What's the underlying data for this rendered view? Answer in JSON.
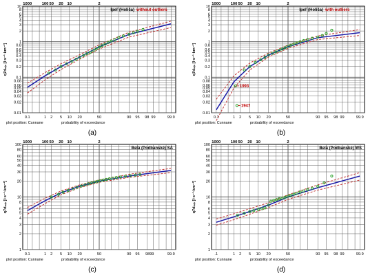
{
  "chart_data": [
    {
      "type": "line",
      "panel_label": "(a)",
      "title": "Ipeľ (Holiša)",
      "subtitle": "without outliers",
      "ylabel": "q7dₘᵢₙ [l·s⁻¹·km⁻²]",
      "xlabel": "probability of exceedance",
      "plot_position_note": "plot position: Cunnane",
      "yscale": "log",
      "ylim": [
        0.01,
        10
      ],
      "xlim": [
        0.05,
        99.95
      ],
      "y_tick_labels": [
        "0.01",
        "0.02",
        "0.03",
        "0.04",
        "0.05",
        "0.06",
        "0.08",
        "0.1",
        "0.2",
        "0.3",
        "0.4",
        "0.5",
        "0.6",
        "0.8",
        "1",
        "2",
        "3",
        "4",
        "5",
        "6",
        "8",
        "10"
      ],
      "x_ticks_bottom": [
        "0.1",
        "1",
        "2",
        "5",
        "10",
        "20",
        "50",
        "90",
        "95",
        "98",
        "99",
        "99.9"
      ],
      "x_ticks_top": [
        "1000",
        "100",
        "50",
        "20",
        "10",
        "2"
      ],
      "series": [
        {
          "name": "fit",
          "role": "fit",
          "color": "#1a1aa8",
          "x": [
            0.1,
            1,
            5,
            20,
            50,
            90,
            99.9
          ],
          "y": [
            0.052,
            0.11,
            0.2,
            0.37,
            0.72,
            1.6,
            3.2
          ]
        },
        {
          "name": "upper",
          "role": "upper",
          "color": "#c03030",
          "x": [
            0.1,
            1,
            5,
            20,
            50,
            90,
            99.9
          ],
          "y": [
            0.068,
            0.135,
            0.24,
            0.43,
            0.82,
            1.85,
            3.8
          ]
        },
        {
          "name": "lower",
          "role": "lower",
          "color": "#c03030",
          "x": [
            0.1,
            1,
            5,
            20,
            50,
            90,
            99.9
          ],
          "y": [
            0.036,
            0.085,
            0.165,
            0.32,
            0.62,
            1.35,
            2.5
          ]
        },
        {
          "name": "observed",
          "role": "points",
          "color": "#27a027",
          "x": [
            1.5,
            3,
            5,
            8,
            12,
            16,
            20,
            25,
            30,
            35,
            40,
            45,
            50,
            55,
            60,
            65,
            70,
            75,
            80,
            85,
            90,
            93,
            95,
            97
          ],
          "y": [
            0.13,
            0.16,
            0.2,
            0.24,
            0.28,
            0.32,
            0.36,
            0.41,
            0.46,
            0.5,
            0.56,
            0.62,
            0.7,
            0.78,
            0.85,
            0.95,
            1.05,
            1.15,
            1.3,
            1.45,
            1.62,
            1.8,
            1.95,
            2.2
          ]
        }
      ]
    },
    {
      "type": "line",
      "panel_label": "(b)",
      "title": "Ipeľ (Holiša)",
      "subtitle": "with outliers",
      "ylabel": "q7dₘᵢₙ [l·s⁻¹·km⁻²]",
      "xlabel": "probability of exceedance",
      "plot_position_note": "plot position: Cunnane",
      "yscale": "log",
      "ylim": [
        0.01,
        10
      ],
      "xlim": [
        0.05,
        99.95
      ],
      "y_tick_labels": [
        "0.01",
        "0.02",
        "0.03",
        "0.04",
        "0.05",
        "0.06",
        "0.08",
        "0.1",
        "0.2",
        "0.3",
        "0.4",
        "0.5",
        "0.6",
        "0.8",
        "1",
        "2",
        "3",
        "4",
        "5",
        "6",
        "8",
        "10"
      ],
      "x_ticks_bottom": [
        "0.1",
        "1",
        "2",
        "5",
        "10",
        "20",
        "50",
        "90",
        "95",
        "98",
        "99",
        "99.9"
      ],
      "x_ticks_top": [
        "1000",
        "100",
        "50",
        "20",
        "10",
        "2"
      ],
      "annotations": [
        {
          "text": "1993",
          "x": 1.2,
          "y": 0.057
        },
        {
          "text": "1947",
          "x": 1.4,
          "y": 0.016
        }
      ],
      "series": [
        {
          "name": "fit",
          "role": "fit",
          "color": "#1a1aa8",
          "x": [
            0.1,
            1,
            5,
            20,
            50,
            90,
            99.9
          ],
          "y": [
            0.012,
            0.075,
            0.2,
            0.42,
            0.72,
            1.3,
            1.8
          ]
        },
        {
          "name": "upper",
          "role": "upper",
          "color": "#c03030",
          "x": [
            0.1,
            1,
            5,
            20,
            50,
            90,
            99.9
          ],
          "y": [
            0.024,
            0.11,
            0.25,
            0.48,
            0.8,
            1.45,
            2.2
          ]
        },
        {
          "name": "lower",
          "role": "lower",
          "color": "#c03030",
          "x": [
            0.1,
            1,
            5,
            20,
            50,
            90,
            99.9
          ],
          "y": [
            0.006,
            0.05,
            0.16,
            0.37,
            0.65,
            1.15,
            1.5
          ]
        },
        {
          "name": "observed",
          "role": "points",
          "color": "#27a027",
          "x": [
            1.2,
            1.4,
            3,
            5,
            8,
            12,
            16,
            20,
            25,
            30,
            35,
            40,
            45,
            50,
            55,
            60,
            65,
            70,
            75,
            80,
            85,
            90,
            93,
            95,
            97
          ],
          "y": [
            0.057,
            0.016,
            0.16,
            0.2,
            0.26,
            0.31,
            0.36,
            0.42,
            0.47,
            0.52,
            0.57,
            0.62,
            0.68,
            0.74,
            0.8,
            0.87,
            0.93,
            1.0,
            1.08,
            1.15,
            1.25,
            1.35,
            1.5,
            1.7,
            2.1
          ]
        }
      ]
    },
    {
      "type": "line",
      "panel_label": "(c)",
      "title": "Belá (Podbanské) SA",
      "subtitle": "",
      "ylabel": "q7dₘᵢₙ [l·s⁻¹·km⁻²]",
      "xlabel": "probability of exceedance",
      "plot_position_note": "plot position: Cunnane",
      "yscale": "log",
      "ylim": [
        1,
        100
      ],
      "xlim": [
        0.05,
        99.95
      ],
      "y_tick_labels": [
        "1",
        "2",
        "3",
        "4",
        "5",
        "6",
        "8",
        "10",
        "20",
        "30",
        "40",
        "50",
        "60",
        "80",
        "100"
      ],
      "x_ticks_bottom": [
        "0.1",
        "1",
        "2",
        "5",
        "10",
        "20",
        "50",
        "90",
        "95",
        "9899",
        "99.9"
      ],
      "x_ticks_top": [
        "1000",
        "100",
        "50",
        "20",
        "10",
        "2"
      ],
      "series": [
        {
          "name": "fit",
          "role": "fit",
          "color": "#1a1aa8",
          "x": [
            0.1,
            1,
            5,
            20,
            50,
            90,
            99.9
          ],
          "y": [
            5.5,
            8.5,
            12,
            16,
            20,
            25,
            32
          ]
        },
        {
          "name": "upper",
          "role": "upper",
          "color": "#c03030",
          "x": [
            0.1,
            1,
            5,
            20,
            50,
            90,
            99.9
          ],
          "y": [
            6.3,
            9.5,
            13,
            17,
            21,
            27,
            35
          ]
        },
        {
          "name": "lower",
          "role": "lower",
          "color": "#c03030",
          "x": [
            0.1,
            1,
            5,
            20,
            50,
            90,
            99.9
          ],
          "y": [
            4.7,
            7.5,
            11,
            15,
            19,
            23.5,
            29
          ]
        },
        {
          "name": "observed",
          "role": "points",
          "color": "#27a027",
          "x": [
            2,
            4,
            6,
            9,
            13,
            17,
            22,
            27,
            32,
            37,
            42,
            47,
            52,
            57,
            62,
            67,
            72,
            77,
            82,
            87,
            91,
            94,
            96
          ],
          "y": [
            10,
            11.2,
            12.3,
            13.3,
            14.3,
            15.3,
            16.2,
            17,
            17.8,
            18.5,
            19.2,
            19.8,
            20.4,
            21,
            21.6,
            22.2,
            22.8,
            23.4,
            24,
            24.7,
            25.4,
            26,
            26.8
          ]
        }
      ]
    },
    {
      "type": "line",
      "panel_label": "(d)",
      "title": "Belá (Podbanské) WS",
      "subtitle": "",
      "ylabel": "q7dₘᵢₙ [l·s⁻¹·km⁻²]",
      "xlabel": "probability of exceedance",
      "plot_position_note": "plot position: Cunnane",
      "yscale": "log",
      "ylim": [
        1,
        100
      ],
      "xlim": [
        0.05,
        99.95
      ],
      "y_tick_labels": [
        "1",
        "2",
        "3",
        "4",
        "5",
        "6",
        "8",
        "10",
        "20",
        "30",
        "40",
        "50",
        "60",
        "80",
        "100"
      ],
      "x_ticks_bottom": [
        ".1",
        "1",
        "2",
        "5",
        "10",
        "20",
        "50",
        "90",
        "95",
        "98",
        "99",
        "99.9"
      ],
      "x_ticks_top": [
        "1000",
        "100",
        "50",
        "20",
        "10",
        "2"
      ],
      "series": [
        {
          "name": "fit",
          "role": "fit",
          "color": "#1a1aa8",
          "x": [
            0.1,
            1,
            5,
            20,
            50,
            90,
            99.9
          ],
          "y": [
            3.3,
            4.2,
            5.3,
            7,
            10,
            15,
            25
          ]
        },
        {
          "name": "upper",
          "role": "upper",
          "color": "#c03030",
          "x": [
            0.1,
            1,
            5,
            20,
            50,
            90,
            99.9
          ],
          "y": [
            3.8,
            4.8,
            6,
            7.8,
            11,
            17,
            29
          ]
        },
        {
          "name": "lower",
          "role": "lower",
          "color": "#c03030",
          "x": [
            0.1,
            1,
            5,
            20,
            50,
            90,
            99.9
          ],
          "y": [
            2.9,
            3.7,
            4.7,
            6.3,
            9,
            13.5,
            21
          ]
        },
        {
          "name": "observed",
          "role": "points",
          "color": "#27a027",
          "x": [
            1.5,
            3,
            5,
            7,
            10,
            13,
            16,
            20,
            23,
            27,
            31,
            35,
            40,
            45,
            50,
            55,
            60,
            65,
            70,
            75,
            80,
            85,
            90,
            94,
            97
          ],
          "y": [
            4.5,
            4.9,
            5.3,
            5.5,
            5.8,
            6,
            6.2,
            7,
            8.3,
            8.6,
            8.9,
            9.2,
            9.5,
            9.9,
            10.3,
            10.8,
            11.3,
            11.8,
            12.4,
            13,
            13.8,
            14.7,
            16,
            18.5,
            25
          ]
        }
      ]
    }
  ],
  "colors": {
    "fit": "#1a1aa8",
    "confidence": "#c03030",
    "observed": "#27a027",
    "grid": "#4d4d4d",
    "subtitle": "#c00000",
    "annotation": "#c00000"
  }
}
